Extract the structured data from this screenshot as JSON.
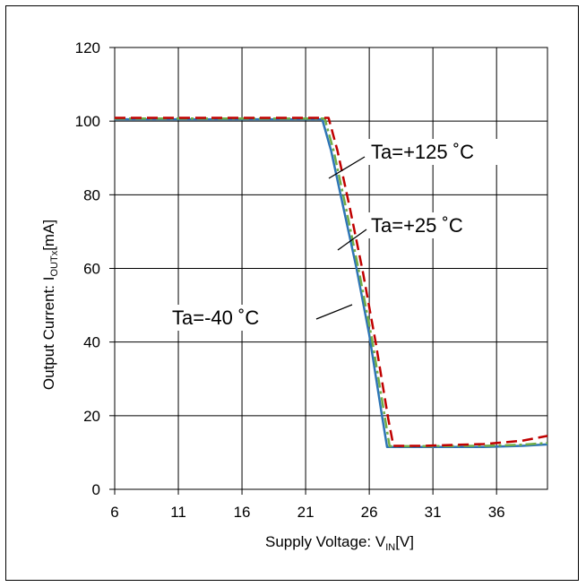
{
  "chart_data": {
    "type": "line",
    "xlabel": {
      "main": "Supply Voltage: V",
      "sub": "IN",
      "tail": "[V]"
    },
    "ylabel": {
      "main": "Output Current: I",
      "sub": "OUTx",
      "tail": "[mA]"
    },
    "xlim": [
      6,
      40
    ],
    "ylim": [
      0,
      120
    ],
    "xticks": [
      6,
      11,
      16,
      21,
      26,
      31,
      36
    ],
    "yticks": [
      0,
      20,
      40,
      60,
      80,
      100,
      120
    ],
    "grid": true,
    "series": [
      {
        "name": "Ta=-40 ˚C",
        "color": "#2e75b6",
        "dash": "solid",
        "x": [
          6,
          22.3,
          23,
          24,
          25,
          26,
          27,
          27.4,
          30,
          35,
          38,
          40
        ],
        "y": [
          100.5,
          100.5,
          92,
          76,
          60,
          42,
          20,
          11.5,
          11.5,
          11.5,
          11.8,
          12.2
        ]
      },
      {
        "name": "Ta=+25 ˚C",
        "color": "#70ad47",
        "dash": "dashdot",
        "x": [
          6,
          22.5,
          23.2,
          24.2,
          25.2,
          26.2,
          27.2,
          27.6,
          30,
          35,
          38,
          40
        ],
        "y": [
          100.7,
          100.7,
          92,
          76,
          59,
          41,
          20,
          11.7,
          11.7,
          11.8,
          12.1,
          12.6
        ]
      },
      {
        "name": "Ta=+125 ˚C",
        "color": "#c00000",
        "dash": "dashed",
        "x": [
          6,
          22.8,
          23.5,
          24.5,
          25.5,
          26.5,
          27.5,
          27.9,
          30,
          35,
          38,
          40
        ],
        "y": [
          100.9,
          100.9,
          92,
          76,
          59,
          40,
          19,
          11.8,
          11.8,
          12.3,
          13.2,
          14.5
        ]
      }
    ],
    "annotations": [
      {
        "text": "Ta=+125 ˚C",
        "series": 2
      },
      {
        "text": "Ta=+25 ˚C",
        "series": 1
      },
      {
        "text": "Ta=-40 ˚C",
        "series": 0
      }
    ]
  }
}
